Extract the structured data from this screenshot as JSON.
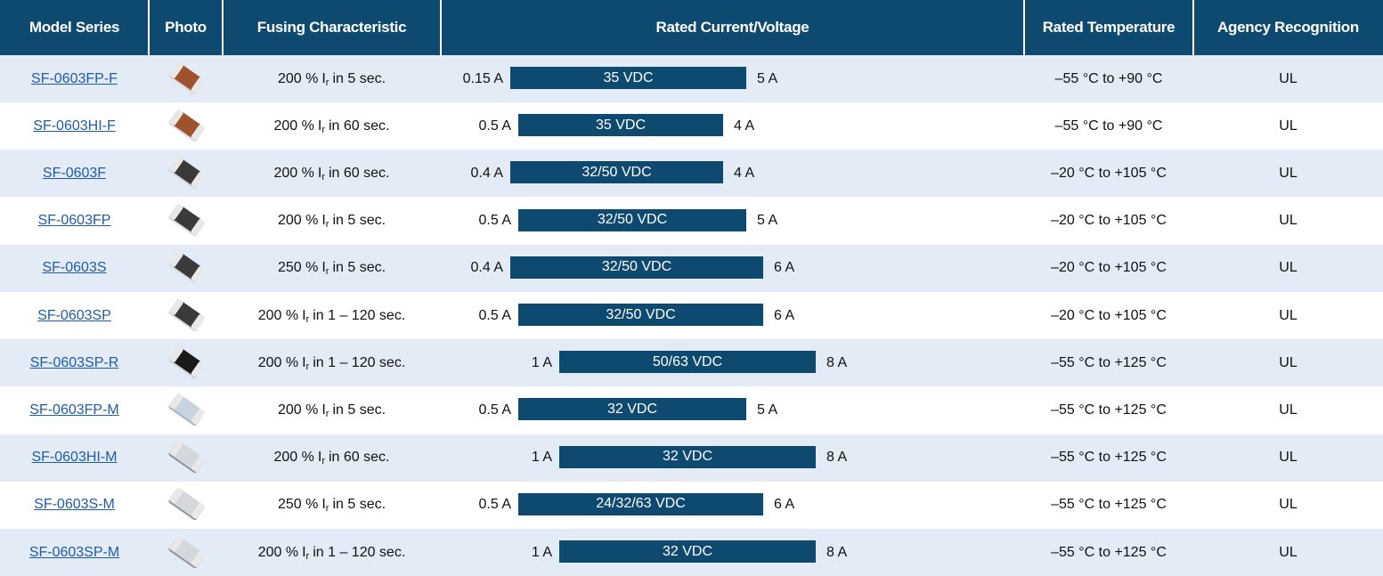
{
  "table": {
    "headers": [
      "Model Series",
      "Photo",
      "Fusing Characteristic",
      "Rated Current/Voltage",
      "Rated Temperature",
      "Agency Recognition"
    ],
    "current_symbol": "I",
    "current_subscript": "r",
    "rows": [
      {
        "model": "SF-0603FP-F",
        "fusing_ratio": "200 %",
        "fusing_time": "in 5 sec.",
        "min_current": "0.15 A",
        "voltage": "35 VDC",
        "max_current": "5 A",
        "temperature": "–55 °C to +90 °C",
        "agency": "UL"
      },
      {
        "model": "SF-0603HI-F",
        "fusing_ratio": "200 %",
        "fusing_time": "in 60 sec.",
        "min_current": "0.5 A",
        "voltage": "35 VDC",
        "max_current": "4 A",
        "temperature": "–55 °C to +90 °C",
        "agency": "UL"
      },
      {
        "model": "SF-0603F",
        "fusing_ratio": "200 %",
        "fusing_time": "in 60 sec.",
        "min_current": "0.4 A",
        "voltage": "32/50 VDC",
        "max_current": "4 A",
        "temperature": "–20 °C to +105 °C",
        "agency": "UL"
      },
      {
        "model": "SF-0603FP",
        "fusing_ratio": "200 %",
        "fusing_time": "in 5 sec.",
        "min_current": "0.5 A",
        "voltage": "32/50 VDC",
        "max_current": "5 A",
        "temperature": "–20 °C to +105 °C",
        "agency": "UL"
      },
      {
        "model": "SF-0603S",
        "fusing_ratio": "250 %",
        "fusing_time": "in 5 sec.",
        "min_current": "0.4 A",
        "voltage": "32/50 VDC",
        "max_current": "6 A",
        "temperature": "–20 °C to +105 °C",
        "agency": "UL"
      },
      {
        "model": "SF-0603SP",
        "fusing_ratio": "200 %",
        "fusing_time": "in 1 – 120 sec.",
        "min_current": "0.5 A",
        "voltage": "32/50 VDC",
        "max_current": "6 A",
        "temperature": "–20 °C to +105 °C",
        "agency": "UL"
      },
      {
        "model": "SF-0603SP-R",
        "fusing_ratio": "200 %",
        "fusing_time": "in 1 – 120 sec.",
        "min_current": "1 A",
        "voltage": "50/63 VDC",
        "max_current": "8 A",
        "temperature": "–55 °C to +125 °C",
        "agency": "UL"
      },
      {
        "model": "SF-0603FP-M",
        "fusing_ratio": "200 %",
        "fusing_time": "in 5 sec.",
        "min_current": "0.5 A",
        "voltage": "32 VDC",
        "max_current": "5 A",
        "temperature": "–55 °C to +125 °C",
        "agency": "UL"
      },
      {
        "model": "SF-0603HI-M",
        "fusing_ratio": "200 %",
        "fusing_time": "in 60 sec.",
        "min_current": "1 A",
        "voltage": "32 VDC",
        "max_current": "8 A",
        "temperature": "–55 °C to +125 °C",
        "agency": "UL"
      },
      {
        "model": "SF-0603S-M",
        "fusing_ratio": "250 %",
        "fusing_time": "in 5 sec.",
        "min_current": "0.5 A",
        "voltage": "24/32/63 VDC",
        "max_current": "6 A",
        "temperature": "–55 °C to +125 °C",
        "agency": "UL"
      },
      {
        "model": "SF-0603SP-M",
        "fusing_ratio": "200 %",
        "fusing_time": "in 1 – 120 sec.",
        "min_current": "1 A",
        "voltage": "32 VDC",
        "max_current": "8 A",
        "temperature": "–55 °C to +125 °C",
        "agency": "UL"
      }
    ]
  }
}
